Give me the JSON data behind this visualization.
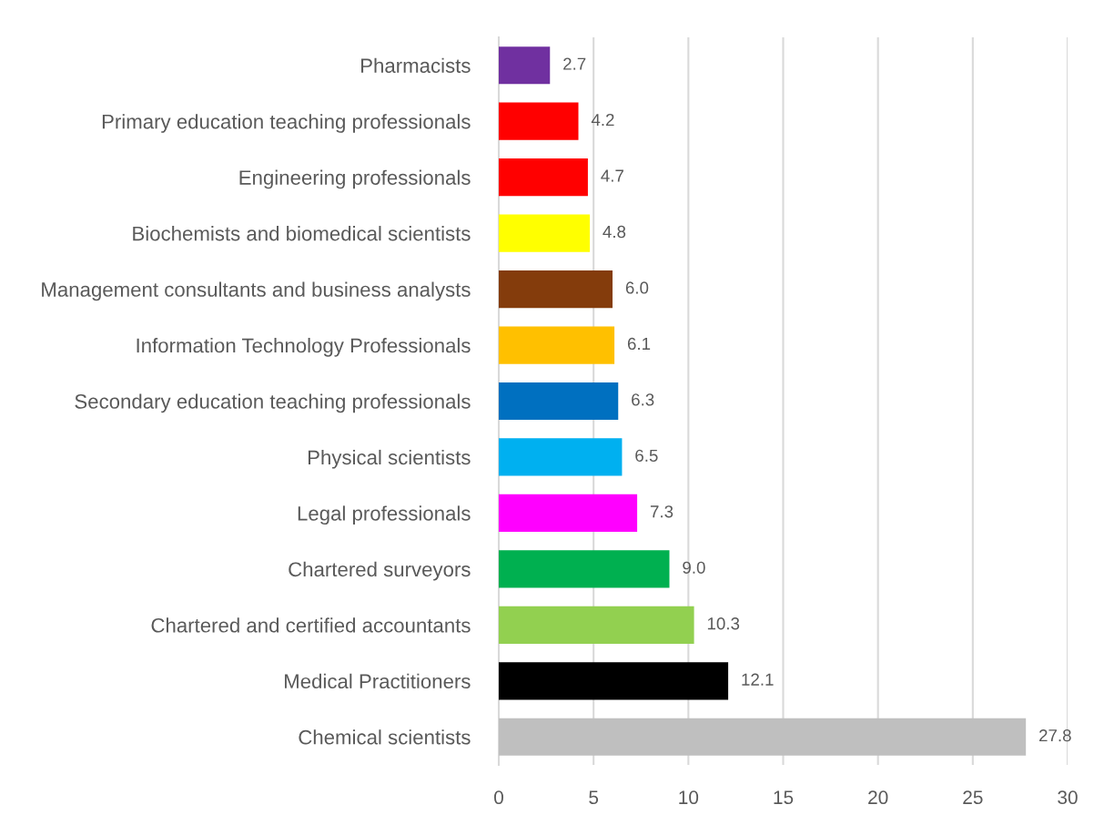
{
  "chart_data": {
    "type": "bar",
    "orientation": "horizontal",
    "categories": [
      "Pharmacists",
      "Primary education teaching professionals",
      "Engineering professionals",
      "Biochemists and biomedical scientists",
      "Management consultants and business analysts",
      "Information Technology Professionals",
      "Secondary education teaching professionals",
      "Physical scientists",
      "Legal professionals",
      "Chartered surveyors",
      "Chartered and certified accountants",
      "Medical Practitioners",
      "Chemical scientists"
    ],
    "values": [
      2.7,
      4.2,
      4.7,
      4.8,
      6.0,
      6.1,
      6.3,
      6.5,
      7.3,
      9.0,
      10.3,
      12.1,
      27.8
    ],
    "value_labels": [
      "2.7",
      "4.2",
      "4.7",
      "4.8",
      "6.0",
      "6.1",
      "6.3",
      "6.5",
      "7.3",
      "9.0",
      "10.3",
      "12.1",
      "27.8"
    ],
    "colors": [
      "#7030a0",
      "#ff0000",
      "#ff0000",
      "#ffff00",
      "#843c0c",
      "#ffc000",
      "#0070c0",
      "#00b0f0",
      "#ff00ff",
      "#00b050",
      "#92d050",
      "#000000",
      "#bfbfbf"
    ],
    "xlim": [
      0,
      30
    ],
    "xticks": [
      0,
      5,
      10,
      15,
      20,
      25,
      30
    ],
    "grid": "x",
    "legend": false
  }
}
